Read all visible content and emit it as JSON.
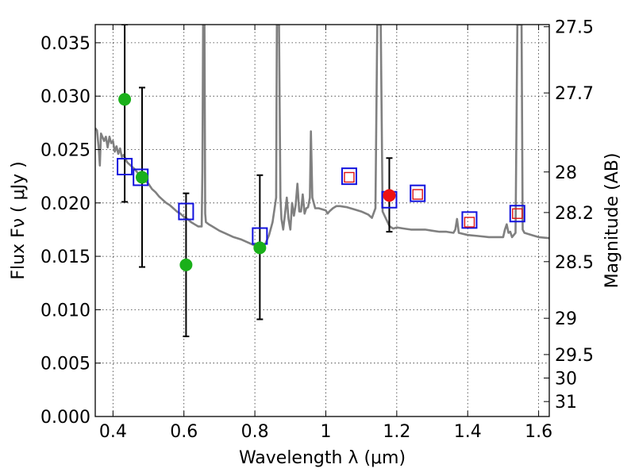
{
  "chart_data": {
    "type": "scatter",
    "title": "",
    "xlabel": "Wavelength  λ (μm)",
    "ylabel": "Flux  Fν  ( μJy )",
    "y2label": "Magnitude (AB)",
    "xlim": [
      0.35,
      1.63
    ],
    "ylim": [
      0.0,
      0.0367
    ],
    "grid": true,
    "x_ticks": [
      {
        "v": 0.4,
        "label": "0.4"
      },
      {
        "v": 0.6,
        "label": "0.6"
      },
      {
        "v": 0.8,
        "label": "0.8"
      },
      {
        "v": 1.0,
        "label": "1"
      },
      {
        "v": 1.2,
        "label": "1.2"
      },
      {
        "v": 1.4,
        "label": "1.4"
      },
      {
        "v": 1.6,
        "label": "1.6"
      }
    ],
    "y_ticks": [
      {
        "v": 0.0,
        "label": "0.000"
      },
      {
        "v": 0.005,
        "label": "0.005"
      },
      {
        "v": 0.01,
        "label": "0.010"
      },
      {
        "v": 0.015,
        "label": "0.015"
      },
      {
        "v": 0.02,
        "label": "0.020"
      },
      {
        "v": 0.025,
        "label": "0.025"
      },
      {
        "v": 0.03,
        "label": "0.030"
      },
      {
        "v": 0.035,
        "label": "0.035"
      }
    ],
    "mag_ticks": [
      {
        "v": 0.0365,
        "label": "27.5"
      },
      {
        "v": 0.0303,
        "label": "27.7"
      },
      {
        "v": 0.0229,
        "label": "28"
      },
      {
        "v": 0.0191,
        "label": "28.2"
      },
      {
        "v": 0.0145,
        "label": "28.5"
      },
      {
        "v": 0.0092,
        "label": "29"
      },
      {
        "v": 0.0058,
        "label": "29.5"
      },
      {
        "v": 0.0036,
        "label": "30"
      },
      {
        "v": 0.0014,
        "label": "31"
      }
    ],
    "series": [
      {
        "name": "model spectrum",
        "type": "line",
        "color": "#808080",
        "points": [
          [
            0.35,
            0.027
          ],
          [
            0.355,
            0.0268
          ],
          [
            0.36,
            0.025
          ],
          [
            0.363,
            0.0235
          ],
          [
            0.366,
            0.0265
          ],
          [
            0.37,
            0.0262
          ],
          [
            0.375,
            0.0258
          ],
          [
            0.38,
            0.0262
          ],
          [
            0.385,
            0.0252
          ],
          [
            0.39,
            0.0262
          ],
          [
            0.395,
            0.0256
          ],
          [
            0.4,
            0.0258
          ],
          [
            0.405,
            0.0248
          ],
          [
            0.41,
            0.0253
          ],
          [
            0.415,
            0.0246
          ],
          [
            0.42,
            0.0251
          ],
          [
            0.425,
            0.0243
          ],
          [
            0.43,
            0.0245
          ],
          [
            0.44,
            0.0238
          ],
          [
            0.45,
            0.0235
          ],
          [
            0.46,
            0.0232
          ],
          [
            0.47,
            0.0228
          ],
          [
            0.48,
            0.0225
          ],
          [
            0.49,
            0.0221
          ],
          [
            0.5,
            0.0218
          ],
          [
            0.51,
            0.0213
          ],
          [
            0.52,
            0.021
          ],
          [
            0.53,
            0.0206
          ],
          [
            0.54,
            0.0203
          ],
          [
            0.55,
            0.02
          ],
          [
            0.56,
            0.0198
          ],
          [
            0.57,
            0.0195
          ],
          [
            0.58,
            0.0192
          ],
          [
            0.59,
            0.019
          ],
          [
            0.6,
            0.0187
          ],
          [
            0.61,
            0.0185
          ],
          [
            0.62,
            0.0182
          ],
          [
            0.63,
            0.018
          ],
          [
            0.64,
            0.0178
          ],
          [
            0.65,
            0.0178
          ],
          [
            0.652,
            0.023
          ],
          [
            0.654,
            0.0367
          ],
          [
            0.658,
            0.0367
          ],
          [
            0.66,
            0.019
          ],
          [
            0.662,
            0.0182
          ],
          [
            0.67,
            0.018
          ],
          [
            0.68,
            0.0178
          ],
          [
            0.7,
            0.0174
          ],
          [
            0.72,
            0.0171
          ],
          [
            0.74,
            0.0168
          ],
          [
            0.76,
            0.0166
          ],
          [
            0.78,
            0.0163
          ],
          [
            0.8,
            0.016
          ],
          [
            0.82,
            0.0158
          ],
          [
            0.83,
            0.0162
          ],
          [
            0.84,
            0.017
          ],
          [
            0.85,
            0.0182
          ],
          [
            0.86,
            0.0205
          ],
          [
            0.862,
            0.0367
          ],
          [
            0.868,
            0.0367
          ],
          [
            0.872,
            0.0205
          ],
          [
            0.875,
            0.0185
          ],
          [
            0.88,
            0.0175
          ],
          [
            0.885,
            0.019
          ],
          [
            0.89,
            0.0205
          ],
          [
            0.895,
            0.0185
          ],
          [
            0.9,
            0.0175
          ],
          [
            0.905,
            0.02
          ],
          [
            0.91,
            0.0188
          ],
          [
            0.915,
            0.0198
          ],
          [
            0.92,
            0.0218
          ],
          [
            0.925,
            0.0192
          ],
          [
            0.93,
            0.0192
          ],
          [
            0.935,
            0.0208
          ],
          [
            0.94,
            0.019
          ],
          [
            0.945,
            0.0195
          ],
          [
            0.95,
            0.0196
          ],
          [
            0.955,
            0.0205
          ],
          [
            0.958,
            0.0267
          ],
          [
            0.962,
            0.0205
          ],
          [
            0.97,
            0.0195
          ],
          [
            0.98,
            0.0195
          ],
          [
            0.99,
            0.0194
          ],
          [
            1.0,
            0.0193
          ],
          [
            1.005,
            0.019
          ],
          [
            1.01,
            0.0192
          ],
          [
            1.02,
            0.0195
          ],
          [
            1.03,
            0.0197
          ],
          [
            1.04,
            0.0197
          ],
          [
            1.06,
            0.0196
          ],
          [
            1.08,
            0.0194
          ],
          [
            1.1,
            0.0192
          ],
          [
            1.12,
            0.0189
          ],
          [
            1.13,
            0.0186
          ],
          [
            1.14,
            0.0195
          ],
          [
            1.145,
            0.0367
          ],
          [
            1.155,
            0.0367
          ],
          [
            1.16,
            0.0192
          ],
          [
            1.17,
            0.0185
          ],
          [
            1.18,
            0.0178
          ],
          [
            1.19,
            0.0176
          ],
          [
            1.2,
            0.0177
          ],
          [
            1.22,
            0.0176
          ],
          [
            1.24,
            0.0175
          ],
          [
            1.26,
            0.0175
          ],
          [
            1.28,
            0.0175
          ],
          [
            1.3,
            0.0174
          ],
          [
            1.32,
            0.0173
          ],
          [
            1.34,
            0.0173
          ],
          [
            1.36,
            0.0172
          ],
          [
            1.365,
            0.0175
          ],
          [
            1.37,
            0.0185
          ],
          [
            1.375,
            0.0172
          ],
          [
            1.4,
            0.017
          ],
          [
            1.43,
            0.0169
          ],
          [
            1.46,
            0.0168
          ],
          [
            1.49,
            0.0168
          ],
          [
            1.5,
            0.0168
          ],
          [
            1.505,
            0.0175
          ],
          [
            1.51,
            0.018
          ],
          [
            1.515,
            0.0172
          ],
          [
            1.52,
            0.0173
          ],
          [
            1.525,
            0.0168
          ],
          [
            1.53,
            0.017
          ],
          [
            1.535,
            0.0172
          ],
          [
            1.54,
            0.0367
          ],
          [
            1.552,
            0.0367
          ],
          [
            1.555,
            0.0175
          ],
          [
            1.56,
            0.0172
          ],
          [
            1.58,
            0.017
          ],
          [
            1.6,
            0.0168
          ],
          [
            1.63,
            0.0167
          ]
        ]
      },
      {
        "name": "observed photometry with errors",
        "type": "errorbar",
        "color": "#000000",
        "points": [
          {
            "x": 0.433,
            "y": 0.0297,
            "lo": 0.0201,
            "hi": 0.0367
          },
          {
            "x": 0.482,
            "y": 0.0224,
            "lo": 0.014,
            "hi": 0.0308
          },
          {
            "x": 0.606,
            "y": 0.0142,
            "lo": 0.0075,
            "hi": 0.0209
          },
          {
            "x": 0.814,
            "y": 0.0158,
            "lo": 0.0091,
            "hi": 0.0226
          },
          {
            "x": 1.179,
            "y": 0.0207,
            "lo": 0.0173,
            "hi": 0.0242
          }
        ]
      },
      {
        "name": "detections",
        "type": "scatter",
        "color": "#1ab01a",
        "points": [
          [
            0.433,
            0.0297
          ],
          [
            0.482,
            0.0224
          ],
          [
            0.606,
            0.0142
          ],
          [
            0.814,
            0.0158
          ]
        ]
      },
      {
        "name": "detection (red)",
        "type": "scatter",
        "color": "#ee1111",
        "points": [
          [
            1.179,
            0.0207
          ]
        ]
      },
      {
        "name": "model synthetic photometry",
        "type": "scatter",
        "color": "#1111dd",
        "points": [
          [
            0.433,
            0.0234
          ],
          [
            0.478,
            0.0224
          ],
          [
            0.606,
            0.0192
          ],
          [
            0.814,
            0.0169
          ],
          [
            1.066,
            0.0225
          ],
          [
            1.179,
            0.0203
          ],
          [
            1.259,
            0.0209
          ],
          [
            1.405,
            0.0184
          ],
          [
            1.54,
            0.019
          ]
        ]
      },
      {
        "name": "upper limits",
        "type": "scatter",
        "color": "#dd1111",
        "points": [
          [
            1.066,
            0.0224
          ],
          [
            1.259,
            0.0208
          ],
          [
            1.405,
            0.0182
          ],
          [
            1.54,
            0.019
          ]
        ]
      }
    ]
  }
}
